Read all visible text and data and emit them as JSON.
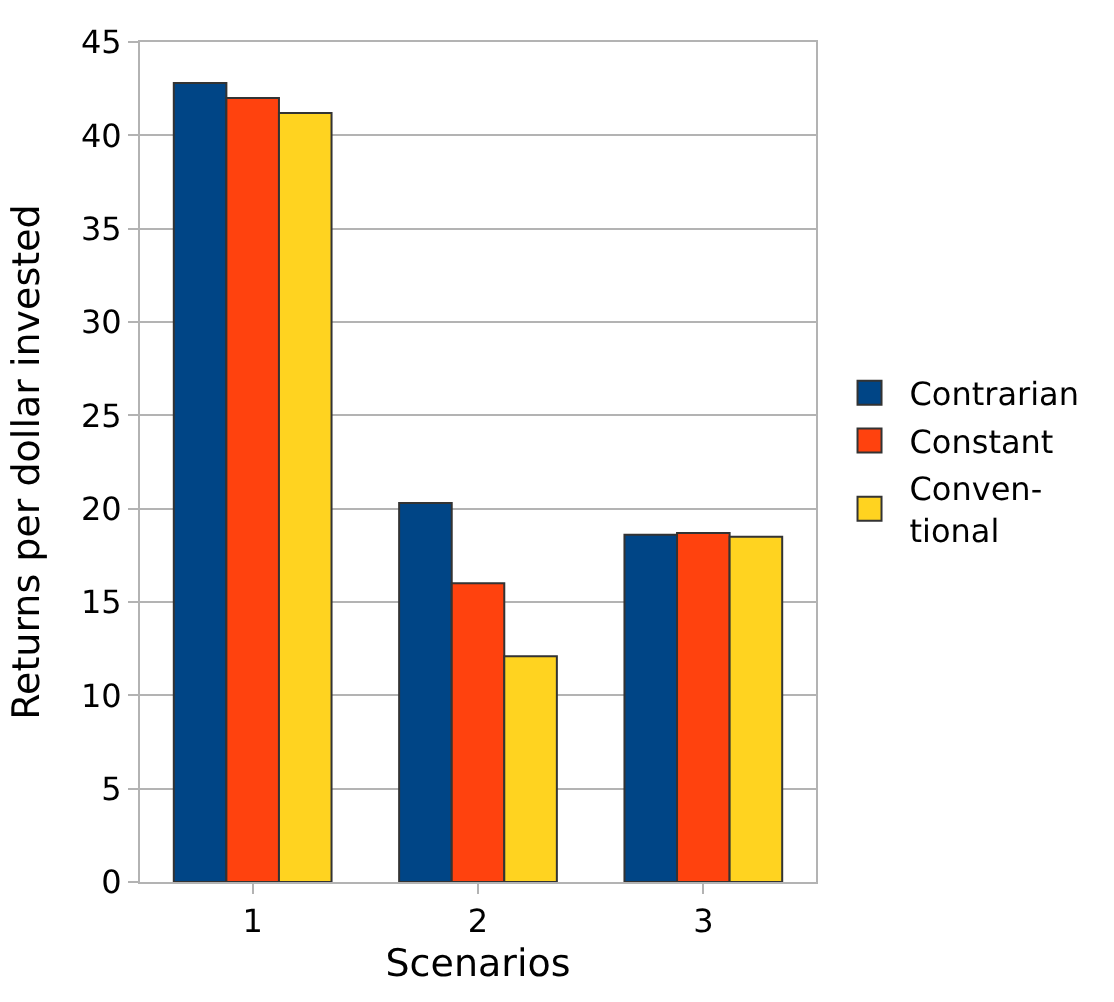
{
  "chart_data": {
    "type": "bar",
    "xlabel": "Scenarios",
    "ylabel": "Returns per dollar invested",
    "categories": [
      "1",
      "2",
      "3"
    ],
    "series": [
      {
        "name": "Contrarian",
        "color": "#004586",
        "values": [
          42.8,
          20.3,
          18.6
        ]
      },
      {
        "name": "Constant",
        "color": "#ff420e",
        "values": [
          42.0,
          16.0,
          18.7
        ]
      },
      {
        "name": "Conven-\ntional",
        "color": "#ffd320",
        "values": [
          41.2,
          12.1,
          18.5
        ]
      }
    ],
    "ylim": [
      0,
      45
    ],
    "yticks": [
      0,
      5,
      10,
      15,
      20,
      25,
      30,
      35,
      40,
      45
    ],
    "grid": "y",
    "legend": "right"
  }
}
